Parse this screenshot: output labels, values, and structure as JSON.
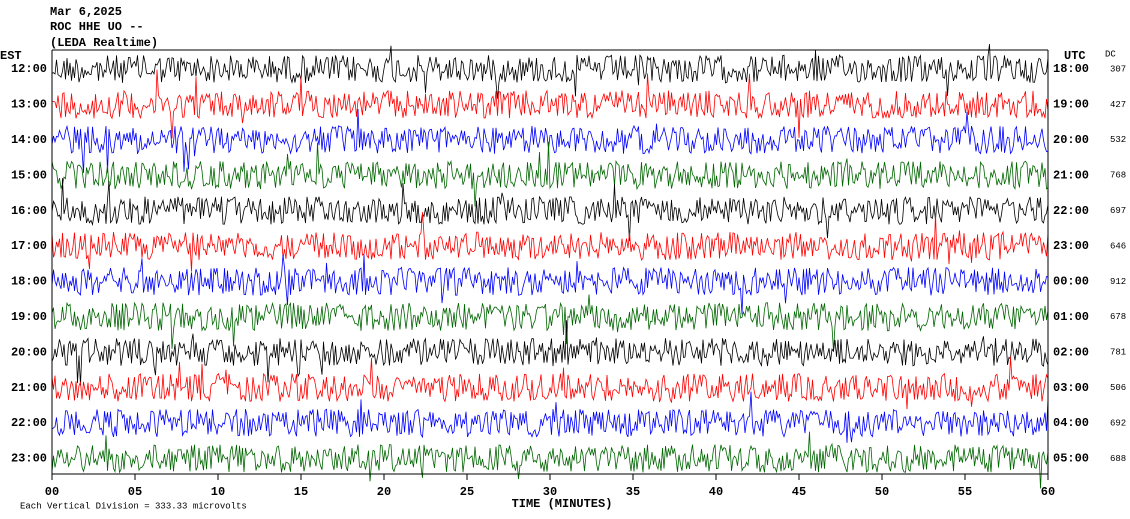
{
  "chart_data": {
    "type": "helicorder",
    "title": "Mar 6,2025",
    "subtitle": "ROC HHE UO --",
    "source": "(LEDA Realtime)",
    "left_axis_label": "EST",
    "right_axis_label": "UTC",
    "dc_header": "DC",
    "xlabel": "TIME (MINUTES)",
    "footnote": "Each Vertical Division = 333.33 microvolts",
    "est_labels": [
      "12:00",
      "13:00",
      "14:00",
      "15:00",
      "16:00",
      "17:00",
      "18:00",
      "19:00",
      "20:00",
      "21:00",
      "22:00",
      "23:00"
    ],
    "utc_labels": [
      "18:00",
      "19:00",
      "20:00",
      "21:00",
      "22:00",
      "23:00",
      "00:00",
      "01:00",
      "02:00",
      "03:00",
      "04:00",
      "05:00"
    ],
    "dc_values": [
      307,
      427,
      532,
      768,
      697,
      646,
      912,
      678,
      781,
      506,
      692,
      688
    ],
    "colors": [
      "#000000",
      "#ff0000",
      "#0000ff",
      "#006600"
    ],
    "xlim": [
      0,
      60
    ],
    "xticks": [
      {
        "value": 0,
        "label": "00"
      },
      {
        "value": 5,
        "label": "05"
      },
      10,
      15,
      20,
      25,
      30,
      35,
      40,
      45,
      50,
      55,
      60
    ]
  }
}
